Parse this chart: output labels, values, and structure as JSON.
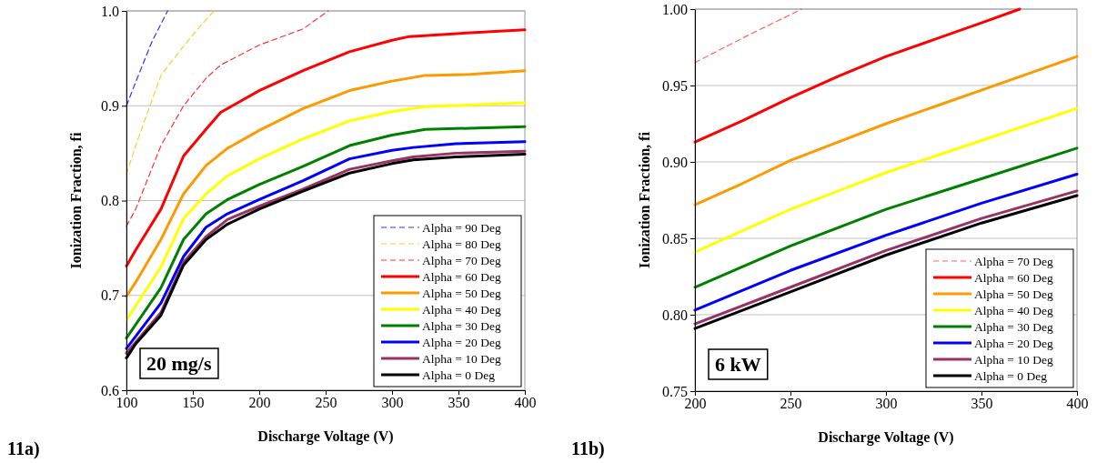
{
  "chart_data": [
    {
      "type": "line",
      "xlabel": "Discharge Voltage (V)",
      "ylabel": "Ionization Fraction, fi",
      "xlim": [
        100,
        400
      ],
      "xticks": [
        100,
        150,
        200,
        250,
        300,
        350,
        400
      ],
      "ylim": [
        0.6,
        1.0
      ],
      "yticks": [
        {
          "value": 0.6,
          "label": "0.6"
        },
        {
          "value": 0.7,
          "label": "0.7"
        },
        {
          "value": 0.8,
          "label": "0.8"
        },
        {
          "value": 0.9,
          "label": "0.9"
        },
        {
          "value": 1.0,
          "label": "1.0"
        }
      ],
      "grid": "y",
      "legend": "bottom right",
      "marker": "none",
      "annotations": [
        "20 mg/s",
        "11a)"
      ],
      "series": [
        {
          "name": "Alpha = 90 Deg",
          "color": "#3333ff",
          "line_style": "dashed",
          "x": [
            100,
            107,
            119,
            131
          ],
          "values": [
            0.9,
            0.925,
            0.967,
            1.0
          ]
        },
        {
          "name": "Alpha = 80 Deg",
          "color": "#ffcc33",
          "line_style": "dashed",
          "x": [
            100,
            107,
            126,
            142,
            155,
            166
          ],
          "values": [
            0.828,
            0.858,
            0.932,
            0.961,
            0.983,
            1.0
          ]
        },
        {
          "name": "Alpha = 70 Deg",
          "color": "#ff3333",
          "line_style": "dashed",
          "x": [
            100,
            107,
            126,
            143,
            160,
            171,
            200,
            233,
            252
          ],
          "values": [
            0.773,
            0.791,
            0.858,
            0.9,
            0.929,
            0.943,
            0.964,
            0.981,
            1.0
          ]
        },
        {
          "name": "Alpha = 60 Deg",
          "color": "#ff0000",
          "line_style": "solid",
          "x": [
            100,
            107,
            126,
            143,
            161,
            171,
            200,
            233,
            268,
            300,
            313,
            327,
            359,
            400
          ],
          "values": [
            0.731,
            0.748,
            0.791,
            0.847,
            0.877,
            0.893,
            0.916,
            0.937,
            0.957,
            0.969,
            0.973,
            0.974,
            0.977,
            0.98
          ]
        },
        {
          "name": "Alpha = 50 Deg",
          "color": "#ff9900",
          "line_style": "solid",
          "x": [
            100,
            107,
            126,
            143,
            160,
            176,
            200,
            233,
            268,
            300,
            325,
            359,
            400
          ],
          "values": [
            0.699,
            0.714,
            0.759,
            0.807,
            0.837,
            0.855,
            0.874,
            0.897,
            0.916,
            0.926,
            0.932,
            0.933,
            0.937
          ]
        },
        {
          "name": "Alpha = 40 Deg",
          "color": "#ffff00",
          "line_style": "solid",
          "x": [
            100,
            107,
            126,
            143,
            160,
            176,
            200,
            233,
            268,
            300,
            325,
            400
          ],
          "values": [
            0.674,
            0.689,
            0.73,
            0.781,
            0.807,
            0.826,
            0.844,
            0.865,
            0.884,
            0.894,
            0.899,
            0.903
          ]
        },
        {
          "name": "Alpha = 30 Deg",
          "color": "#008000",
          "line_style": "solid",
          "x": [
            100,
            126,
            143,
            160,
            176,
            200,
            233,
            268,
            300,
            325,
            400
          ],
          "values": [
            0.655,
            0.708,
            0.759,
            0.786,
            0.801,
            0.817,
            0.836,
            0.858,
            0.869,
            0.875,
            0.878
          ]
        },
        {
          "name": "Alpha = 20 Deg",
          "color": "#0000ff",
          "line_style": "solid",
          "x": [
            100,
            126,
            143,
            160,
            176,
            200,
            233,
            268,
            300,
            316,
            348,
            400
          ],
          "values": [
            0.644,
            0.692,
            0.741,
            0.772,
            0.786,
            0.801,
            0.821,
            0.844,
            0.853,
            0.856,
            0.86,
            0.862
          ]
        },
        {
          "name": "Alpha = 10 Deg",
          "color": "#993366",
          "line_style": "solid",
          "x": [
            100,
            126,
            143,
            160,
            176,
            200,
            233,
            268,
            300,
            316,
            348,
            400
          ],
          "values": [
            0.639,
            0.682,
            0.735,
            0.762,
            0.78,
            0.794,
            0.812,
            0.833,
            0.842,
            0.846,
            0.85,
            0.852
          ]
        },
        {
          "name": "Alpha = 0 Deg",
          "color": "#000000",
          "line_style": "solid",
          "x": [
            100,
            107,
            126,
            143,
            160,
            176,
            200,
            233,
            268,
            300,
            316,
            348,
            400
          ],
          "values": [
            0.634,
            0.649,
            0.679,
            0.732,
            0.759,
            0.775,
            0.791,
            0.81,
            0.829,
            0.839,
            0.843,
            0.846,
            0.849
          ]
        }
      ]
    },
    {
      "type": "line",
      "xlabel": "Discharge Voltage (V)",
      "ylabel": "Ionization Fraction, fi",
      "xlim": [
        200,
        400
      ],
      "xticks": [
        200,
        250,
        300,
        350,
        400
      ],
      "ylim": [
        0.75,
        1.0
      ],
      "yticks": [
        0.75,
        {
          "value": 0.8,
          "label": "0.80"
        },
        0.85,
        {
          "value": 0.9,
          "label": "0.90"
        },
        0.95,
        {
          "value": 1.0,
          "label": "1.00"
        }
      ],
      "grid": "y",
      "legend": "bottom right",
      "marker": "none",
      "annotations": [
        "6 kW",
        "11b)"
      ],
      "series": [
        {
          "name": "Alpha = 70 Deg",
          "color": "#ff6666",
          "line_style": "dashed",
          "x": [
            200,
            228,
            256
          ],
          "values": [
            0.965,
            0.983,
            1.0
          ]
        },
        {
          "name": "Alpha = 60 Deg",
          "color": "#ff0000",
          "line_style": "solid",
          "x": [
            200,
            225,
            250,
            275,
            300,
            325,
            350,
            370
          ],
          "values": [
            0.913,
            0.927,
            0.942,
            0.956,
            0.969,
            0.98,
            0.991,
            1.0
          ]
        },
        {
          "name": "Alpha = 50 Deg",
          "color": "#ff9900",
          "line_style": "solid",
          "x": [
            200,
            225,
            250,
            275,
            300,
            325,
            350,
            400
          ],
          "values": [
            0.872,
            0.886,
            0.901,
            0.913,
            0.925,
            0.936,
            0.947,
            0.969
          ]
        },
        {
          "name": "Alpha = 40 Deg",
          "color": "#ffff00",
          "line_style": "solid",
          "x": [
            200,
            250,
            275,
            300,
            350,
            400
          ],
          "values": [
            0.841,
            0.869,
            0.881,
            0.893,
            0.914,
            0.935
          ]
        },
        {
          "name": "Alpha = 30 Deg",
          "color": "#008000",
          "line_style": "solid",
          "x": [
            200,
            250,
            300,
            350,
            400
          ],
          "values": [
            0.818,
            0.845,
            0.869,
            0.889,
            0.909
          ]
        },
        {
          "name": "Alpha = 20 Deg",
          "color": "#0000ff",
          "line_style": "solid",
          "x": [
            200,
            250,
            300,
            350,
            400
          ],
          "values": [
            0.803,
            0.829,
            0.852,
            0.873,
            0.892
          ]
        },
        {
          "name": "Alpha = 10 Deg",
          "color": "#993366",
          "line_style": "solid",
          "x": [
            200,
            250,
            300,
            350,
            400
          ],
          "values": [
            0.794,
            0.818,
            0.842,
            0.863,
            0.881
          ]
        },
        {
          "name": "Alpha = 0 Deg",
          "color": "#000000",
          "line_style": "solid",
          "x": [
            200,
            250,
            300,
            350,
            400
          ],
          "values": [
            0.791,
            0.815,
            0.839,
            0.86,
            0.878
          ]
        }
      ]
    }
  ]
}
